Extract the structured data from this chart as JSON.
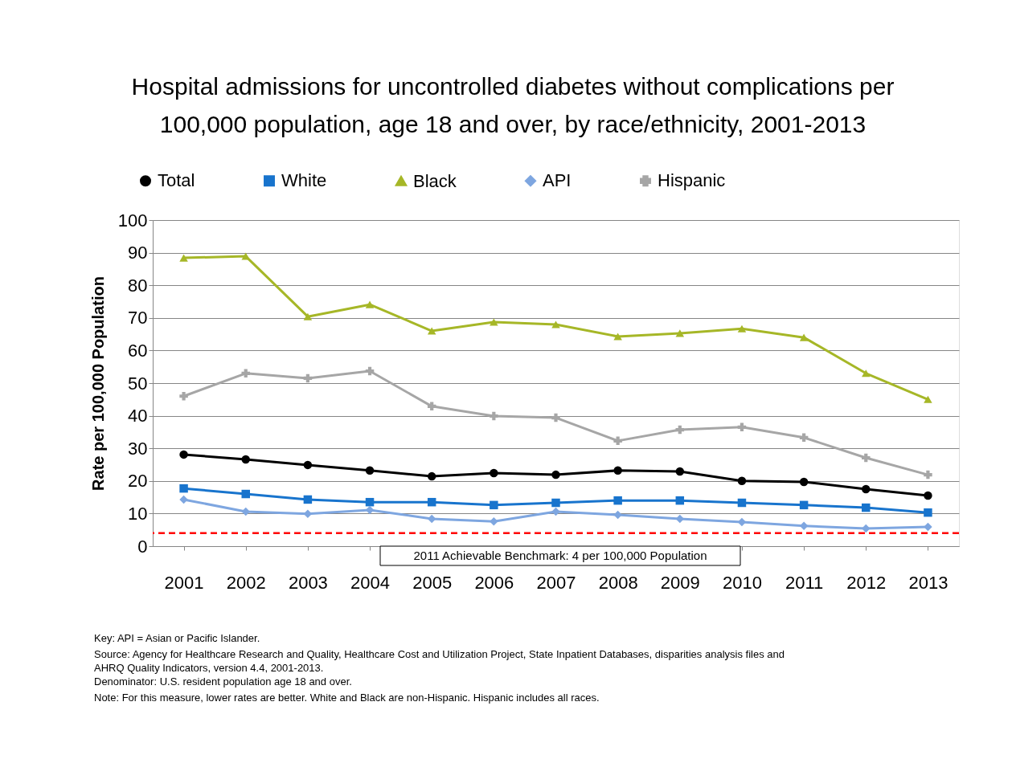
{
  "chart_data": {
    "type": "line",
    "title": "Hospital admissions for uncontrolled diabetes without complications per 100,000 population, age 18 and over, by race/ethnicity, 2001-2013",
    "ylabel": "Rate per 100,000 Population",
    "categories": [
      "2001",
      "2002",
      "2003",
      "2004",
      "2005",
      "2006",
      "2007",
      "2008",
      "2009",
      "2010",
      "2011",
      "2012",
      "2013"
    ],
    "series": [
      {
        "name": "Total",
        "color": "#000000",
        "marker": "circle",
        "values": [
          28.1,
          26.6,
          24.9,
          23.2,
          21.4,
          22.4,
          21.9,
          23.2,
          22.9,
          20,
          19.7,
          17.5,
          15.5
        ]
      },
      {
        "name": "White",
        "color": "#1874cd",
        "marker": "square",
        "values": [
          17.7,
          16,
          14.3,
          13.5,
          13.5,
          12.6,
          13.3,
          14,
          14,
          13.3,
          12.6,
          11.8,
          10.3
        ]
      },
      {
        "name": "Black",
        "color": "#a6b727",
        "marker": "triangle",
        "values": [
          88.4,
          88.9,
          70.4,
          74.1,
          66,
          68.7,
          68,
          64.3,
          65.3,
          66.7,
          64,
          53,
          45
        ]
      },
      {
        "name": "API",
        "color": "#7ea6e0",
        "marker": "diamond",
        "values": [
          14.3,
          10.6,
          9.9,
          11.1,
          8.4,
          7.6,
          10.6,
          9.6,
          8.4,
          7.4,
          6.2,
          5.4,
          5.9
        ]
      },
      {
        "name": "Hispanic",
        "color": "#a6a6a6",
        "marker": "cross",
        "values": [
          46,
          53,
          51.5,
          53.7,
          42.9,
          39.9,
          39.4,
          32.3,
          35.7,
          36.5,
          33.3,
          27.1,
          21.9
        ]
      }
    ],
    "ylim": [
      0,
      100
    ],
    "yticks": [
      0,
      10,
      20,
      30,
      40,
      50,
      60,
      70,
      80,
      90,
      100
    ],
    "grid": "y",
    "legend": "top",
    "ref_lines": [
      {
        "axis": "y",
        "value": 4,
        "label": "2011 Achievable Benchmark: 4 per 100,000 Population",
        "color": "#ff0000",
        "line_style": "dashed"
      }
    ],
    "annotations": [
      "Key: API = Asian or Pacific Islander.",
      "Source: Agency for Healthcare Research and Quality, Healthcare Cost and Utilization Project, State Inpatient Databases, disparities analysis files and AHRQ Quality Indicators, version 4.4, 2001-2013.",
      "Denominator: U.S. resident population age 18 and over.",
      "Note: For this measure, lower rates are better. White and Black are non-Hispanic. Hispanic includes all races."
    ]
  }
}
